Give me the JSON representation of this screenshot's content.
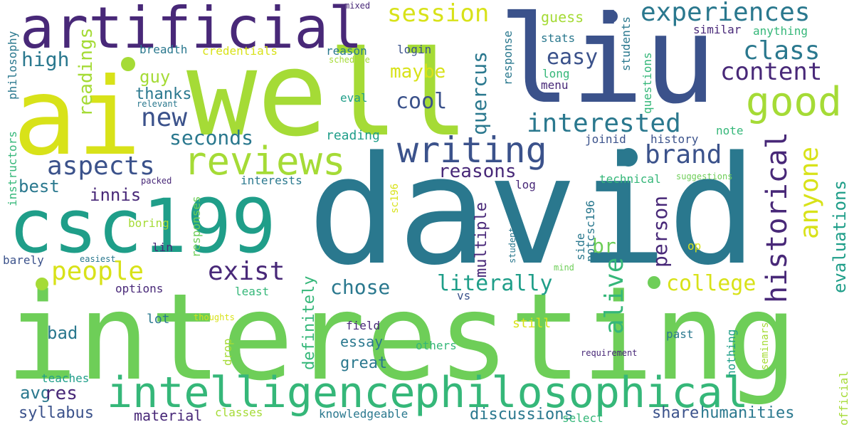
{
  "palette": {
    "lime": "#a5db36",
    "green": "#6ece58",
    "yellow": "#d8e219",
    "teal": "#2a788e",
    "bluegreen": "#1f9e89",
    "blue": "#3b528b",
    "purple": "#482878",
    "sea": "#35b779"
  },
  "words": [
    "interesting",
    "david",
    "well",
    "liu",
    "ai",
    "csc199",
    "artificial",
    "intelligence",
    "philosophical",
    "writing",
    "reviews",
    "good",
    "experiences",
    "interested",
    "historical",
    "people",
    "exist",
    "brand",
    "aspects",
    "class",
    "content",
    "session",
    "new",
    "anyone",
    "alive",
    "quercus",
    "cool",
    "maybe",
    "easy",
    "literally",
    "chose",
    "college",
    "reasons",
    "high",
    "best",
    "seconds",
    "person",
    "innis",
    "readings",
    "guy",
    "thanks",
    "avg",
    "res",
    "syllabus",
    "material",
    "humanities",
    "discussions",
    "share",
    "great",
    "essay",
    "definitely",
    "multiple",
    "evaluations",
    "bad",
    "br",
    "guess",
    "stats",
    "similar",
    "anything",
    "login",
    "reason",
    "breadth",
    "credentials",
    "mixed",
    "philosophy",
    "instructors",
    "response",
    "long",
    "menu",
    "students",
    "questions",
    "schedule",
    "relevant",
    "eval",
    "reading",
    "joinid",
    "history",
    "note",
    "technical",
    "suggestions",
    "interests",
    "notcsc196",
    "log",
    "packed",
    "sc196",
    "lin",
    "boring",
    "responses",
    "barely",
    "easiest",
    "student",
    "side",
    "op",
    "mind",
    "options",
    "least",
    "vs",
    "field",
    "still",
    "others",
    "thoughts",
    "lot",
    "drop",
    "nothing",
    "past",
    "seminars",
    "requirement",
    "official",
    "teaches",
    "classes",
    "knowledgeable",
    "select"
  ]
}
